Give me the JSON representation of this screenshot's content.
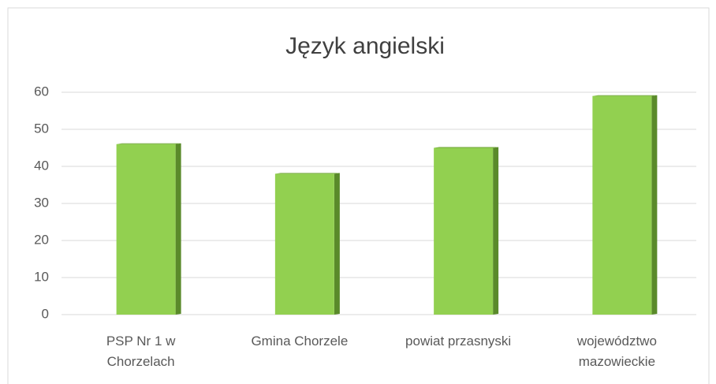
{
  "chart_data": {
    "type": "bar",
    "title": "Język angielski",
    "categories": [
      "PSP Nr 1 w Chorzelach",
      "Gmina Chorzele",
      "powiat przasnyski",
      "województwo mazowieckie"
    ],
    "values": [
      46,
      38,
      45,
      59
    ],
    "color": "#92d050",
    "ylim": [
      0,
      60
    ],
    "yticks": [
      0,
      10,
      20,
      30,
      40,
      50,
      60
    ],
    "grid": true
  }
}
